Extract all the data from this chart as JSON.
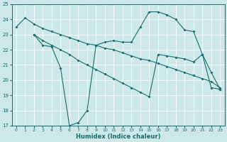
{
  "xlabel": "Humidex (Indice chaleur)",
  "xlim_left": -0.5,
  "xlim_right": 23.5,
  "ylim": [
    17,
    25
  ],
  "yticks": [
    17,
    18,
    19,
    20,
    21,
    22,
    23,
    24,
    25
  ],
  "xticks": [
    0,
    1,
    2,
    3,
    4,
    5,
    6,
    7,
    8,
    9,
    10,
    11,
    12,
    13,
    14,
    15,
    16,
    17,
    18,
    19,
    20,
    21,
    22,
    23
  ],
  "bg_color": "#cde8e8",
  "line_color": "#1a6b6b",
  "grid_color": "#ffffff",
  "line1_x": [
    0,
    1,
    2,
    3,
    4,
    5,
    6,
    7,
    8,
    9,
    10,
    11,
    12,
    13,
    14,
    15,
    16,
    17,
    18,
    19,
    20,
    21,
    22,
    23
  ],
  "line1_y": [
    23.5,
    24.1,
    23.7,
    23.4,
    23.2,
    23.0,
    22.8,
    22.6,
    22.4,
    22.3,
    22.1,
    22.0,
    21.8,
    21.6,
    21.4,
    21.3,
    21.1,
    20.9,
    20.7,
    20.5,
    20.3,
    20.1,
    19.9,
    19.5
  ],
  "line2_x": [
    2,
    3,
    4,
    5,
    6,
    7,
    8,
    9,
    10,
    11,
    12,
    13,
    14,
    15,
    16,
    17,
    18,
    19,
    20,
    21,
    22,
    23
  ],
  "line2_y": [
    23.0,
    22.3,
    22.2,
    20.8,
    17.0,
    17.2,
    18.0,
    22.3,
    22.5,
    22.6,
    22.5,
    22.5,
    23.5,
    24.5,
    24.5,
    24.3,
    24.0,
    23.3,
    23.2,
    21.7,
    20.5,
    19.4
  ],
  "line3_x": [
    2,
    3,
    4,
    5,
    6,
    7,
    8,
    9,
    10,
    11,
    12,
    13,
    14,
    15,
    16,
    17,
    18,
    19,
    20,
    21,
    22,
    23
  ],
  "line3_y": [
    23.0,
    22.6,
    22.3,
    22.0,
    21.7,
    21.3,
    21.0,
    20.7,
    20.4,
    20.1,
    19.8,
    19.5,
    19.2,
    18.9,
    21.7,
    21.6,
    21.5,
    21.4,
    21.2,
    21.7,
    19.5,
    19.4
  ]
}
